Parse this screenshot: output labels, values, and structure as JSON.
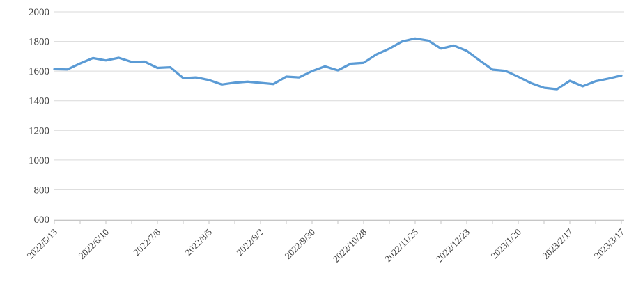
{
  "chart_data": {
    "type": "line",
    "title": "",
    "legend": "none",
    "grid": "horizontal",
    "n_points": 45,
    "point_interval": "weekly",
    "x_labels": [
      "2022/5/13",
      "2022/6/10",
      "2022/7/8",
      "2022/8/5",
      "2022/9/2",
      "2022/9/30",
      "2022/10/28",
      "2022/11/25",
      "2022/12/23",
      "2023/1/20",
      "2023/2/17",
      "2023/3/17"
    ],
    "label_interval": 4,
    "values": [
      1613,
      1611,
      1652,
      1688,
      1672,
      1690,
      1662,
      1664,
      1622,
      1626,
      1553,
      1558,
      1540,
      1510,
      1522,
      1529,
      1521,
      1513,
      1563,
      1558,
      1600,
      1632,
      1605,
      1650,
      1656,
      1713,
      1752,
      1800,
      1820,
      1806,
      1752,
      1772,
      1737,
      1672,
      1610,
      1602,
      1562,
      1519,
      1488,
      1478,
      1535,
      1498,
      1532,
      1550,
      1570
    ],
    "series": [
      {
        "name": "",
        "values_ref": "values"
      }
    ],
    "y_ticks": [
      2000,
      1800,
      1600,
      1400,
      1200,
      1000,
      800,
      600
    ],
    "ylim": [
      600,
      2000
    ],
    "xlabel": "",
    "ylabel": ""
  },
  "colors": {
    "line": "#5B9BD5",
    "gridline": "#D9D9D9",
    "axis": "#C6C6C6",
    "tick_label": "#404040",
    "background": "#FFFFFF"
  }
}
